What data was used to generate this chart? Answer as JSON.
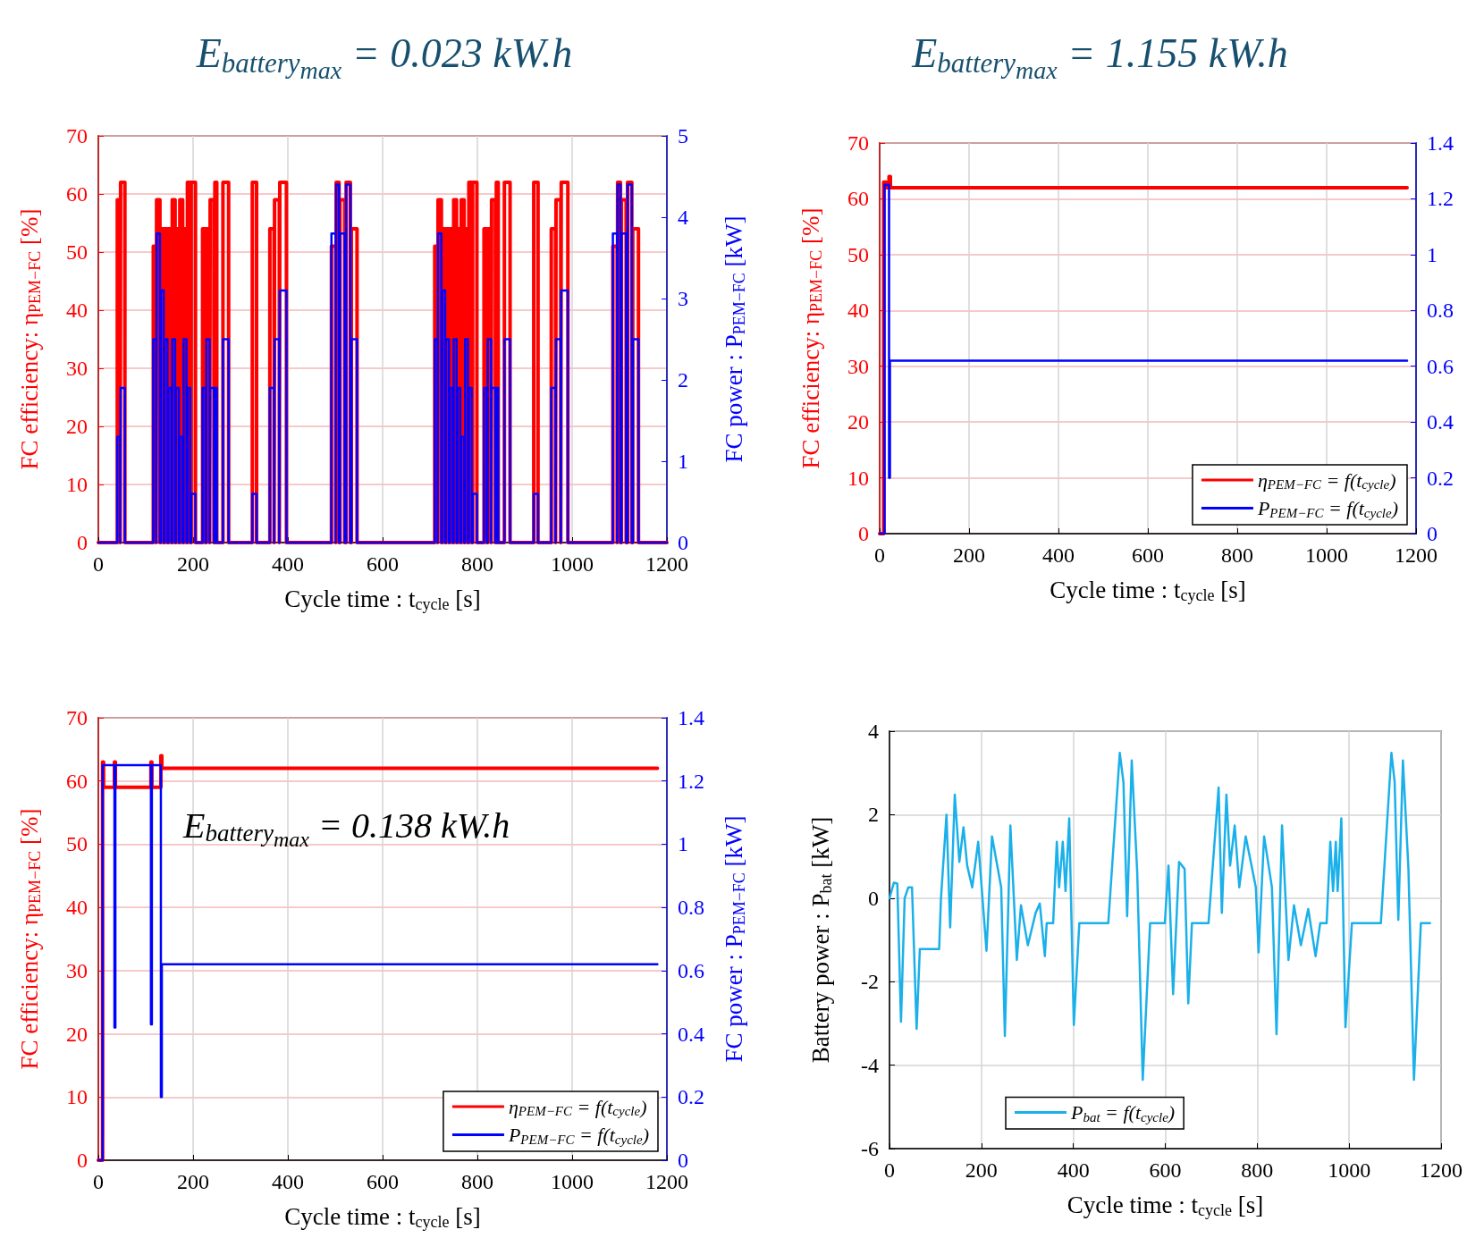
{
  "chart_data": [
    {
      "type": "step",
      "title": "E$_{battery}$$_{max}$ = 0.023 kW.h",
      "xlabel": "Cycle time : t$_{cycle}$ [s]",
      "ylabel": "FC efficiency: η$_{PEM−FC}$ [%]",
      "y2label": "FC power : P$_{PEM−FC}$ [kW]",
      "x": [
        0,
        40,
        46,
        47,
        56,
        116,
        122,
        123,
        130,
        132,
        138,
        140,
        146,
        148,
        154,
        156,
        162,
        164,
        170,
        172,
        178,
        180,
        186,
        188,
        194,
        196,
        205,
        220,
        226,
        228,
        235,
        236,
        244,
        246,
        250,
        263,
        275,
        325,
        334,
        362,
        371,
        372,
        382,
        383,
        397,
        492,
        501,
        502,
        508,
        510,
        520,
        523,
        532,
        534,
        546,
        710,
        716,
        717,
        724,
        726,
        732,
        734,
        740,
        742,
        748,
        750,
        756,
        758,
        764,
        766,
        772,
        774,
        780,
        782,
        788,
        790,
        799,
        814,
        820,
        822,
        829,
        830,
        838,
        840,
        844,
        857,
        869,
        919,
        928,
        956,
        965,
        966,
        976,
        977,
        991,
        1086,
        1095,
        1096,
        1102,
        1104,
        1114,
        1117,
        1126,
        1128,
        1140,
        1200
      ],
      "series": [
        {
          "color": "#ff0000",
          "values": [
            0,
            59,
            0,
            62,
            0,
            51,
            0,
            59,
            0,
            54,
            0,
            54,
            0,
            54,
            0,
            59,
            0,
            54,
            0,
            59,
            0,
            54,
            0,
            62,
            0,
            62,
            0,
            54,
            0,
            54,
            0,
            59,
            0,
            62,
            0,
            62,
            0,
            62,
            0,
            54,
            0,
            59,
            0,
            62,
            0,
            51,
            0,
            62,
            0,
            59,
            0,
            62,
            0,
            54,
            0,
            51,
            0,
            59,
            0,
            54,
            0,
            54,
            0,
            54,
            0,
            59,
            0,
            54,
            0,
            59,
            0,
            54,
            0,
            62,
            0,
            62,
            0,
            54,
            0,
            54,
            0,
            59,
            0,
            62,
            0,
            62,
            0,
            62,
            0,
            54,
            0,
            59,
            0,
            62,
            0,
            51,
            0,
            62,
            0,
            59,
            0,
            62,
            0,
            54,
            0,
            0
          ]
        },
        {
          "color": "#0000ff",
          "axis": "y2",
          "values": [
            0,
            1.3,
            0,
            1.9,
            0,
            2.5,
            0,
            3.8,
            0,
            3.1,
            0,
            2.5,
            0,
            1.9,
            0,
            2.5,
            0,
            1.9,
            0,
            1.3,
            0,
            2.5,
            0,
            1.9,
            0,
            0.6,
            0,
            1.9,
            0,
            2.5,
            0,
            1.9,
            0,
            1.9,
            0,
            2.5,
            0,
            0.6,
            0,
            1.9,
            0,
            2.5,
            0,
            3.1,
            0,
            3.8,
            0,
            4.4,
            0,
            3.8,
            0,
            4.4,
            0,
            2.5,
            0,
            2.5,
            0,
            3.8,
            0,
            3.1,
            0,
            2.5,
            0,
            1.9,
            0,
            2.5,
            0,
            1.9,
            0,
            1.3,
            0,
            2.5,
            0,
            1.9,
            0,
            0.6,
            0,
            1.9,
            0,
            2.5,
            0,
            1.9,
            0,
            1.9,
            0,
            2.5,
            0,
            0.6,
            0,
            1.9,
            0,
            2.5,
            0,
            3.1,
            0,
            3.8,
            0,
            4.4,
            0,
            3.8,
            0,
            4.4,
            0,
            2.5,
            0,
            0
          ]
        }
      ],
      "xlim": [
        0,
        1200
      ],
      "xticks": [
        0,
        200,
        400,
        600,
        800,
        1000,
        1200
      ],
      "ylim": [
        0,
        70
      ],
      "yticks": [
        0,
        10,
        20,
        30,
        40,
        50,
        60,
        70
      ],
      "y2lim": [
        0,
        5
      ],
      "y2ticks": [
        0,
        1,
        2,
        3,
        4,
        5
      ],
      "grid": true
    },
    {
      "type": "line",
      "title": "E$_{battery}$$_{max}$ = 1.155 kW.h",
      "xlabel": "Cycle time : t$_{cycle}$ [s]",
      "ylabel": "FC efficiency: η$_{PEM−FC}$ [%]",
      "series": [
        {
          "name": "η$_{PEM−FC}$ = f(t$_{cycle}$)",
          "color": "#ff0000",
          "x": [
            0,
            9,
            9,
            14,
            14,
            21,
            21,
            24,
            24,
            1180
          ],
          "values": [
            0,
            0,
            63,
            63,
            62,
            62,
            64,
            64,
            62,
            62
          ]
        },
        {
          "name": "P$_{PEM−FC}$ = f(t$_{cycle}$)",
          "color": "#0000ff",
          "axis": "y2",
          "x": [
            0,
            11,
            11,
            21,
            21,
            23,
            23,
            1180
          ],
          "values": [
            0,
            0,
            1.25,
            1.25,
            0.2,
            0.2,
            0.62,
            0.62
          ]
        }
      ],
      "xlim": [
        0,
        1200
      ],
      "xticks": [
        0,
        200,
        400,
        600,
        800,
        1000,
        1200
      ],
      "ylim": [
        0,
        70
      ],
      "yticks": [
        0,
        10,
        20,
        30,
        40,
        50,
        60,
        70
      ],
      "y2lim": [
        0,
        1.4
      ],
      "y2ticks": [
        0,
        0.2,
        0.4,
        0.6,
        0.8,
        1,
        1.2,
        1.4
      ],
      "grid": true,
      "legend": "bottom right"
    },
    {
      "type": "line",
      "annotations": [
        "E$_{battery}$$_{max}$ = 0.138 kW.h"
      ],
      "xlabel": "Cycle time : t$_{cycle}$ [s]",
      "ylabel": "FC efficiency: η$_{PEM−FC}$ [%]",
      "y2label": "FC power : P$_{PEM−FC}$ [kW]",
      "series": [
        {
          "name": "η$_{PEM−FC}$ = f(t$_{cycle}$)",
          "color": "#ff0000",
          "x": [
            0,
            9,
            9,
            11,
            11,
            34,
            34,
            36,
            36,
            111,
            111,
            113,
            113,
            132,
            132,
            134,
            134,
            1180
          ],
          "values": [
            0,
            0,
            63,
            63,
            59,
            59,
            63,
            63,
            59,
            59,
            63,
            63,
            59,
            59,
            64,
            64,
            62,
            62
          ]
        },
        {
          "name": "P$_{PEM−FC}$ = f(t$_{cycle}$)",
          "color": "#0000ff",
          "axis": "y2",
          "x": [
            0,
            9,
            9,
            34,
            34,
            36,
            36,
            111,
            111,
            113,
            113,
            132,
            132,
            134,
            134,
            1180
          ],
          "values": [
            0,
            0,
            1.25,
            1.25,
            0.42,
            0.42,
            1.25,
            1.25,
            0.43,
            0.43,
            1.25,
            1.25,
            0.2,
            0.2,
            0.62,
            0.62
          ]
        }
      ],
      "xlim": [
        0,
        1200
      ],
      "xticks": [
        0,
        200,
        400,
        600,
        800,
        1000,
        1200
      ],
      "ylim": [
        0,
        70
      ],
      "yticks": [
        0,
        10,
        20,
        30,
        40,
        50,
        60,
        70
      ],
      "y2lim": [
        0,
        1.4
      ],
      "y2ticks": [
        0,
        0.2,
        0.4,
        0.6,
        0.8,
        1,
        1.2,
        1.4
      ],
      "grid": true,
      "legend": "bottom right"
    },
    {
      "type": "line",
      "xlabel": "Cycle time : t$_{cycle}$ [s]",
      "ylabel": "Battery power : P$_{bat}$ [kW]",
      "x": [
        0,
        9.5,
        17,
        25,
        33,
        41,
        49,
        59,
        66,
        108,
        112,
        124,
        132,
        142,
        152,
        161,
        169,
        180,
        193,
        211,
        223,
        243,
        251,
        263,
        277,
        286,
        301,
        318,
        327,
        338,
        342,
        356,
        364,
        369,
        377,
        383,
        391,
        401,
        413,
        476,
        501,
        509,
        517,
        527,
        539,
        551,
        567,
        599,
        607,
        617,
        630,
        642,
        650,
        658,
        694,
        716,
        723,
        733,
        741,
        751,
        761,
        775,
        797,
        803,
        815,
        832,
        842,
        854,
        868,
        880,
        895,
        911,
        927,
        937,
        951,
        959,
        965,
        971,
        975,
        983,
        992,
        1006,
        1069,
        1092,
        1099,
        1107,
        1117,
        1129,
        1141,
        1156,
        1176
      ],
      "series": [
        {
          "name": "P$_{bat}$ = f(t$_{cycle}$)",
          "color": "#1ab0ea",
          "values": [
            0,
            0.37,
            0.35,
            -2.96,
            0,
            0.26,
            0.26,
            -3.13,
            -1.22,
            -1.22,
            0,
            2,
            -0.7,
            2.48,
            0.87,
            1.7,
            0.78,
            0.26,
            1.35,
            -1.26,
            1.48,
            0.26,
            -3.3,
            1.74,
            -1.48,
            -0.17,
            -1.13,
            -0.35,
            -0.13,
            -1.39,
            -0.6,
            -0.6,
            1.35,
            0.26,
            1.35,
            0.17,
            1.91,
            -3.04,
            -0.6,
            -0.6,
            3.48,
            2.78,
            -0.43,
            3.3,
            0.6,
            -4.35,
            -0.6,
            -0.6,
            0.78,
            -2.3,
            0.87,
            0.7,
            -2.52,
            -0.6,
            -0.6,
            2.65,
            -0.35,
            2.48,
            0.78,
            1.74,
            0.26,
            1.48,
            0.26,
            -1.3,
            1.48,
            0.26,
            -3.26,
            1.74,
            -1.48,
            -0.17,
            -1.13,
            -0.26,
            -1.39,
            -0.6,
            -0.6,
            1.35,
            0.17,
            1.35,
            0.17,
            1.91,
            -3.09,
            -0.6,
            -0.6,
            3.48,
            2.78,
            -0.52,
            3.3,
            0.7,
            -4.35,
            -0.6,
            -0.6
          ]
        }
      ],
      "xlim": [
        0,
        1200
      ],
      "xticks": [
        0,
        200,
        400,
        600,
        800,
        1000,
        1200
      ],
      "ylim": [
        -6,
        4
      ],
      "yticks": [
        -6,
        -4,
        -2,
        0,
        2,
        4
      ],
      "grid": true,
      "legend": "bottom"
    }
  ]
}
